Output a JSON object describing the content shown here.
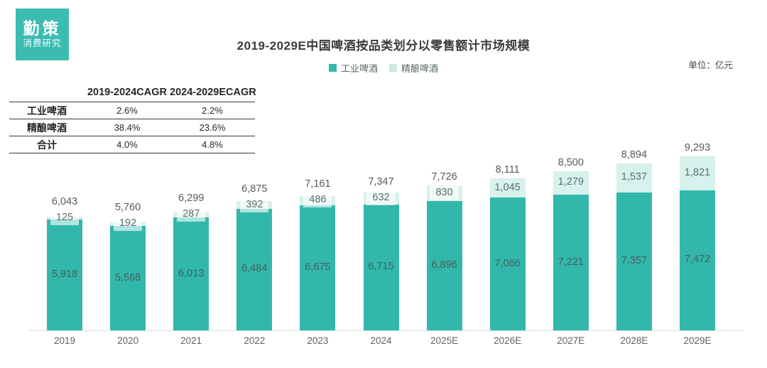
{
  "logo": {
    "line1": "勤策",
    "line2": "消费研究"
  },
  "header": {
    "title": "2019-2029E中国啤酒按品类划分以零售额计市场规模",
    "unit": "单位：亿元"
  },
  "legend": [
    {
      "label": "工业啤酒",
      "color": "#31B8AB"
    },
    {
      "label": "精酿啤酒",
      "color": "#CBEAE4"
    }
  ],
  "cagr_table": {
    "columns": [
      "",
      "2019-2024CAGR",
      "2024-2029ECAGR"
    ],
    "rows": [
      {
        "label": "工业啤酒",
        "values": [
          "2.6%",
          "2.2%"
        ]
      },
      {
        "label": "精酿啤酒",
        "values": [
          "38.4%",
          "23.6%"
        ]
      },
      {
        "label": "合计",
        "values": [
          "4.0%",
          "4.8%"
        ]
      }
    ]
  },
  "chart_data": {
    "type": "bar",
    "stacked": true,
    "title": "2019-2029E中国啤酒按品类划分以零售额计市场规模",
    "unit": "亿元",
    "legend_position": "top",
    "grid": false,
    "ylim": [
      0,
      9300
    ],
    "categories": [
      "2019",
      "2020",
      "2021",
      "2022",
      "2023",
      "2024",
      "2025E",
      "2026E",
      "2027E",
      "2028E",
      "2029E"
    ],
    "series": [
      {
        "name": "工业啤酒",
        "color": "#31B8AB",
        "values": [
          5918,
          5568,
          6013,
          6484,
          6675,
          6715,
          6896,
          7066,
          7221,
          7357,
          7472
        ]
      },
      {
        "name": "精酿啤酒",
        "color": "#D7F1EC",
        "values": [
          125,
          192,
          287,
          392,
          486,
          632,
          830,
          1045,
          1279,
          1537,
          1821
        ]
      }
    ],
    "totals": [
      6043,
      5760,
      6299,
      6875,
      7161,
      7347,
      7726,
      8111,
      8500,
      8894,
      9293
    ]
  }
}
